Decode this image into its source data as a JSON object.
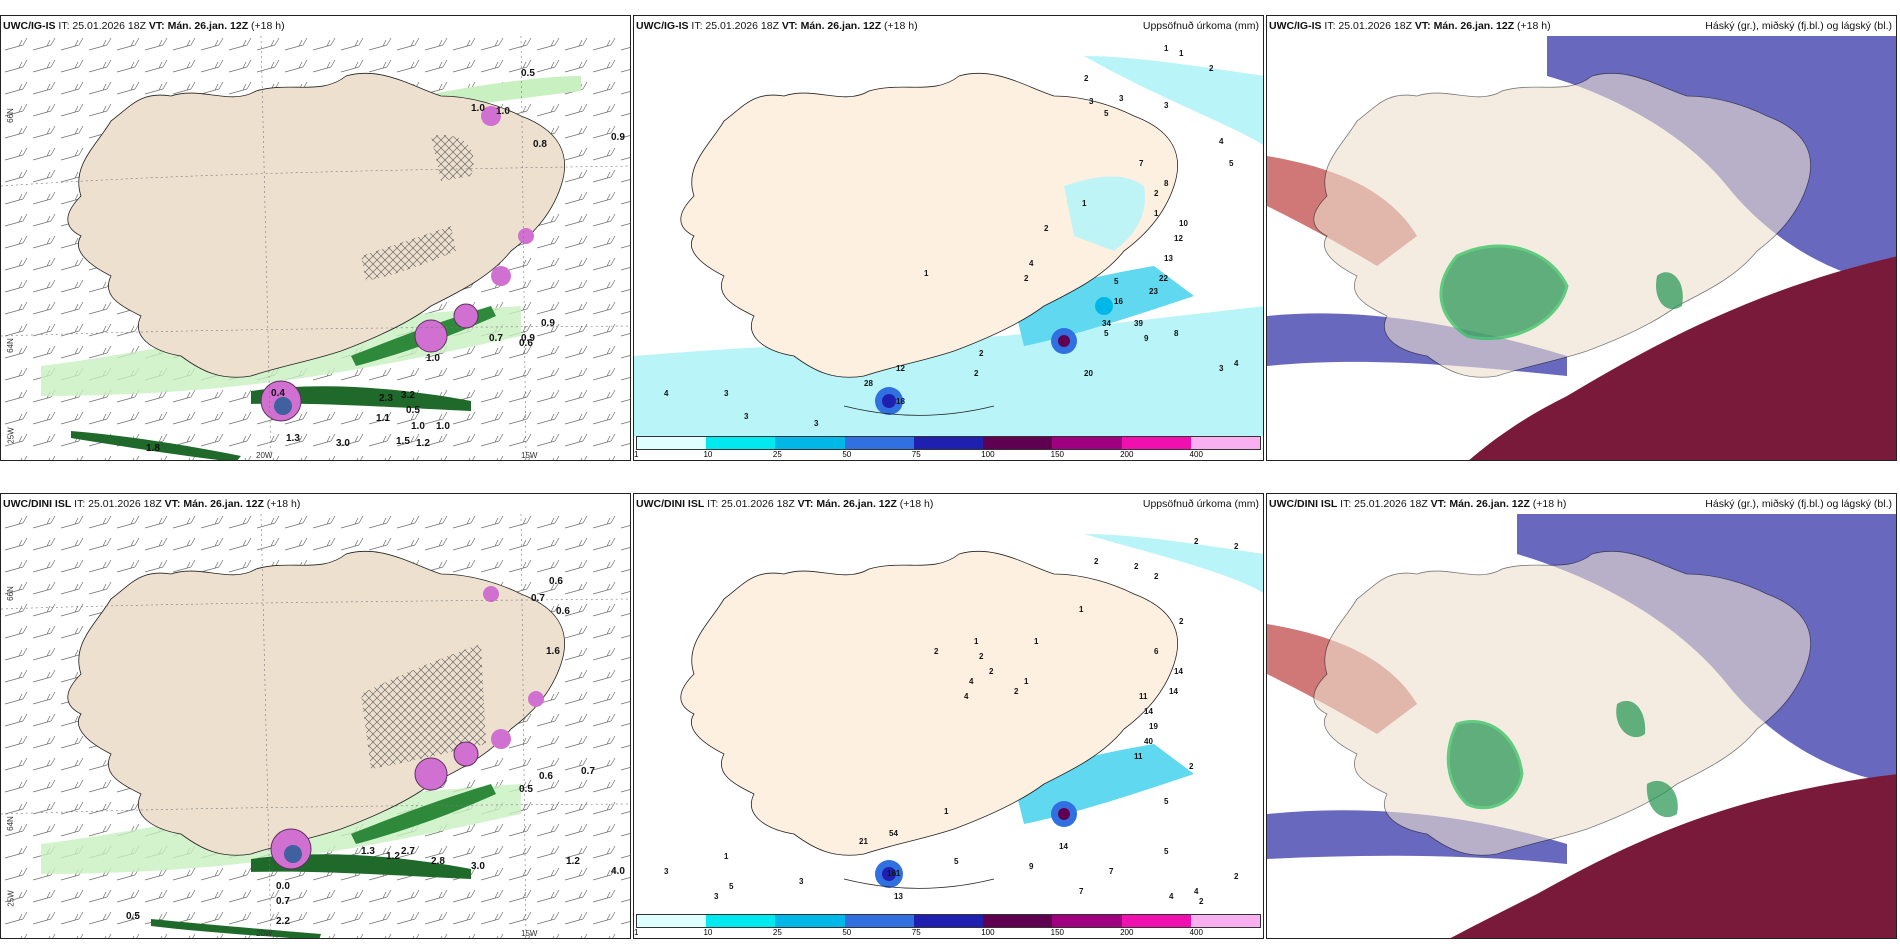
{
  "panels": [
    {
      "id": "p1",
      "model": "UWC/IG-IS",
      "init": "IT: 25.01.2026 18Z",
      "valid_label": "VT:",
      "valid": "Mán. 26.jan. 12Z",
      "lead": "(+18 h)",
      "title_right": "",
      "lat_labels": [
        "66N",
        "64N"
      ],
      "lon_labels": [
        "20W",
        "15W"
      ],
      "corner_label": "25W",
      "values": [
        "0.5",
        "1.0",
        "1.0",
        "0.9",
        "0.8",
        "0.9",
        "0.9",
        "0.7",
        "0.6",
        "1.0",
        "2.3",
        "3.2",
        "0.5",
        "1.1",
        "1.0",
        "1.0",
        "1.5",
        "1.2",
        "1.3",
        "3.0",
        "1.8",
        "0.4"
      ]
    },
    {
      "id": "p2",
      "model": "UWC/IG-IS",
      "init": "IT: 25.01.2026 18Z",
      "valid_label": "VT:",
      "valid": "Mán. 26.jan. 12Z",
      "lead": "(+18 h)",
      "title_right": "Uppsöfnuð úrkoma (mm)",
      "values": [
        "1",
        "1",
        "2",
        "2",
        "3",
        "3",
        "5",
        "3",
        "4",
        "5",
        "8",
        "7",
        "1",
        "2",
        "1",
        "10",
        "12",
        "13",
        "4",
        "5",
        "22",
        "23",
        "2",
        "1",
        "2",
        "16",
        "34",
        "39",
        "5",
        "8",
        "9",
        "20",
        "2",
        "12",
        "2",
        "28",
        "18",
        "4",
        "3",
        "3",
        "3",
        "4",
        "3"
      ]
    },
    {
      "id": "p3",
      "model": "UWC/IG-IS",
      "init": "IT: 25.01.2026 18Z",
      "valid_label": "VT:",
      "valid": "Mán. 26.jan. 12Z",
      "lead": "(+18 h)",
      "title_right": "Háský (gr.), miðský (fj.bl.) og lágský (bl.)"
    },
    {
      "id": "p4",
      "model": "UWC/DINI ISL",
      "init": "IT: 25.01.2026 18Z",
      "valid_label": "VT:",
      "valid": "Mán. 26.jan. 12Z",
      "lead": "(+18 h)",
      "title_right": "",
      "lat_labels": [
        "66N",
        "64N"
      ],
      "lon_labels": [
        "20W",
        "15W"
      ],
      "corner_label": "25W",
      "values": [
        "0.6",
        "0.7",
        "0.6",
        "1.6",
        "0.6",
        "0.7",
        "0.5",
        "1.2",
        "1.3",
        "2.7",
        "2.8",
        "3.0",
        "1.2",
        "4.0",
        "0.0",
        "0.7",
        "2.2",
        "0.5"
      ]
    },
    {
      "id": "p5",
      "model": "UWC/DINI ISL",
      "init": "IT: 25.01.2026 18Z",
      "valid_label": "VT:",
      "valid": "Mán. 26.jan. 12Z",
      "lead": "(+18 h)",
      "title_right": "Uppsöfnuð úrkoma (mm)",
      "values": [
        "2",
        "2",
        "2",
        "2",
        "2",
        "1",
        "2",
        "2",
        "4",
        "6",
        "1",
        "2",
        "2",
        "1",
        "1",
        "2",
        "14",
        "14",
        "11",
        "14",
        "19",
        "40",
        "11",
        "4",
        "2",
        "5",
        "1",
        "5",
        "7",
        "9",
        "14",
        "5",
        "2",
        "3",
        "1",
        "3",
        "5",
        "13",
        "3",
        "7",
        "4",
        "4",
        "2",
        "21",
        "54",
        "161"
      ]
    },
    {
      "id": "p6",
      "model": "UWC/DINI ISL",
      "init": "IT: 25.01.2026 18Z",
      "valid_label": "VT:",
      "valid": "Mán. 26.jan. 12Z",
      "lead": "(+18 h)",
      "title_right": "Háský (gr.), miðský (fj.bl.) og lágský (bl.)"
    }
  ],
  "colorbar": {
    "ticks": [
      "1",
      "10",
      "25",
      "50",
      "75",
      "100",
      "150",
      "200",
      "400"
    ],
    "colors": [
      "#e0ffff",
      "#00e8f0",
      "#00b8e8",
      "#3070e0",
      "#2020b0",
      "#600050",
      "#a00080",
      "#f010b0",
      "#f8b0f0"
    ]
  }
}
